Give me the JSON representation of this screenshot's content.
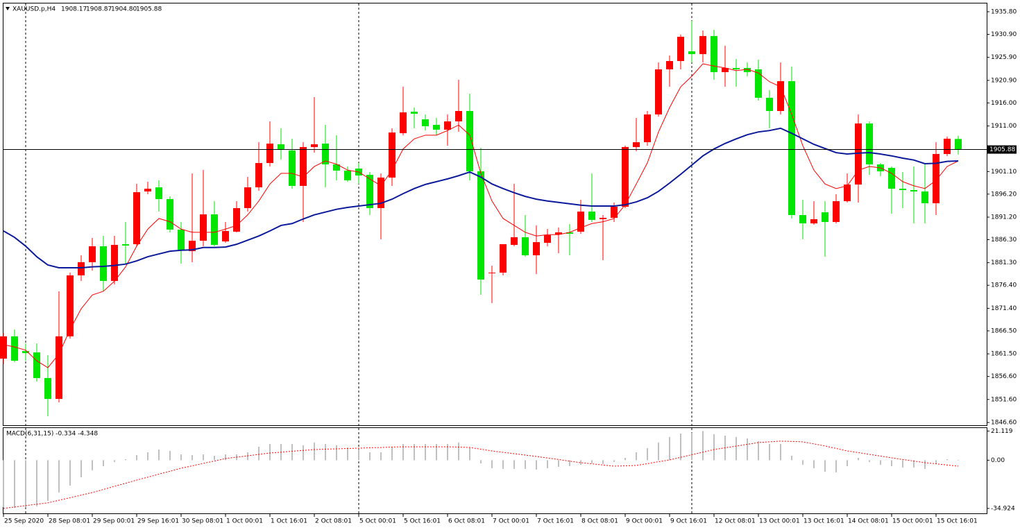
{
  "chart_data": [
    {
      "type": "candlestick",
      "symbol": "XAUUSD.p,H4",
      "last_bar_labels": [
        "1908.17",
        "1908.87",
        "1904.80",
        "1905.88"
      ],
      "categories": [
        "25 Sep 2020",
        null,
        null,
        null,
        "28 Sep 08:01",
        null,
        null,
        null,
        "29 Sep 00:01",
        null,
        null,
        null,
        "29 Sep 16:01",
        null,
        null,
        null,
        "30 Sep 08:01",
        null,
        null,
        null,
        "1 Oct 00:01",
        null,
        null,
        null,
        "1 Oct 16:01",
        null,
        null,
        null,
        "2 Oct 08:01",
        null,
        null,
        null,
        "5 Oct 00:01",
        null,
        null,
        null,
        "5 Oct 16:01",
        null,
        null,
        null,
        "6 Oct 08:01",
        null,
        null,
        null,
        "7 Oct 00:01",
        null,
        null,
        null,
        "7 Oct 16:01",
        null,
        null,
        null,
        "8 Oct 08:01",
        null,
        null,
        null,
        "9 Oct 00:01",
        null,
        null,
        null,
        "9 Oct 16:01",
        null,
        null,
        null,
        "12 Oct 08:01",
        null,
        null,
        null,
        "13 Oct 00:01",
        null,
        null,
        null,
        "13 Oct 16:01",
        null,
        null,
        null,
        "14 Oct 08:01",
        null,
        null,
        null,
        "15 Oct 00:01",
        null,
        null,
        null,
        "15 Oct 16:01",
        null,
        null
      ],
      "open": [
        1860.47,
        1865.31,
        1862.12,
        1861.82,
        1856.25,
        1851.72,
        1865.31,
        1878.55,
        1881.41,
        1884.87,
        1877.34,
        1885.32,
        1885.32,
        1896.77,
        1897.67,
        1895.12,
        1888.49,
        1883.82,
        1886.07,
        1891.8,
        1885.92,
        1888.04,
        1893.16,
        1897.67,
        1902.95,
        1907.02,
        1905.67,
        1897.98,
        1906.42,
        1907.17,
        1902.65,
        1901.3,
        1901.75,
        1900.39,
        1893.16,
        1899.79,
        1909.43,
        1914.1,
        1912.44,
        1911.24,
        1910.19,
        1911.99,
        1914.25,
        1901.15,
        1879.0,
        1879.15,
        1885.17,
        1886.83,
        1882.91,
        1885.62,
        1887.43,
        1887.89,
        1888.04,
        1892.41,
        1890.75,
        1891.05,
        1893.46,
        1906.42,
        1907.47,
        1913.5,
        1923.29,
        1925.1,
        1927.21,
        1926.61,
        1930.53,
        1922.69,
        1923.59,
        1923.59,
        1923.29,
        1917.12,
        1914.25,
        1920.73,
        1891.65,
        1889.84,
        1892.25,
        1890.15,
        1894.66,
        1898.28,
        1911.54,
        1902.65,
        1901.9,
        1897.37,
        1897.07,
        1896.77,
        1894.21,
        1904.91,
        1908.17
      ],
      "high": [
        1866.04,
        1866.79,
        1863.78,
        1863.78,
        1861.22,
        1875.09,
        1879.15,
        1882.91,
        1886.68,
        1887.13,
        1887.13,
        1890.15,
        1898.43,
        1898.89,
        1899.19,
        1895.72,
        1890.15,
        1900.69,
        1901.45,
        1894.66,
        1890.15,
        1894.66,
        1899.94,
        1907.47,
        1911.99,
        1910.49,
        1908.23,
        1907.47,
        1917.27,
        1911.24,
        1908.98,
        1902.2,
        1902.95,
        1901.0,
        1900.69,
        1910.49,
        1919.53,
        1915.0,
        1913.5,
        1912.75,
        1913.5,
        1921.03,
        1918.02,
        1906.27,
        1880.65,
        1885.17,
        1898.43,
        1891.65,
        1889.39,
        1888.64,
        1888.94,
        1889.69,
        1894.97,
        1900.69,
        1891.65,
        1894.36,
        1906.72,
        1912.75,
        1914.25,
        1924.8,
        1926.31,
        1930.83,
        1933.84,
        1931.73,
        1931.88,
        1928.42,
        1925.55,
        1924.8,
        1925.4,
        1918.77,
        1924.8,
        1923.89,
        1894.97,
        1894.66,
        1894.66,
        1896.17,
        1900.69,
        1913.5,
        1911.99,
        1902.95,
        1902.2,
        1900.99,
        1902.2,
        1902.95,
        1907.47,
        1908.68,
        1908.87
      ],
      "low": [
        1859.26,
        1859.71,
        1860.01,
        1855.49,
        1847.96,
        1850.97,
        1864.83,
        1877.34,
        1879.6,
        1875.09,
        1876.59,
        1881.11,
        1884.87,
        1896.17,
        1892.41,
        1887.89,
        1881.11,
        1881.41,
        1884.87,
        1884.87,
        1885.62,
        1887.89,
        1892.41,
        1896.92,
        1902.2,
        1903.71,
        1897.37,
        1890.15,
        1905.21,
        1897.67,
        1899.19,
        1898.89,
        1898.43,
        1891.65,
        1886.37,
        1897.98,
        1908.98,
        1910.49,
        1910.03,
        1908.98,
        1906.72,
        1909.73,
        1899.19,
        1874.33,
        1872.53,
        1878.55,
        1884.87,
        1882.61,
        1878.85,
        1884.87,
        1883.36,
        1882.91,
        1887.59,
        1890.15,
        1881.86,
        1890.15,
        1893.16,
        1905.52,
        1906.72,
        1913.05,
        1919.53,
        1923.29,
        1924.8,
        1924.8,
        1921.03,
        1919.53,
        1919.53,
        1921.79,
        1916.51,
        1910.49,
        1913.5,
        1890.9,
        1886.37,
        1889.54,
        1882.61,
        1889.84,
        1894.36,
        1894.36,
        1900.39,
        1900.09,
        1891.95,
        1893.16,
        1889.84,
        1889.84,
        1891.65,
        1904.46,
        1904.8
      ],
      "close": [
        1865.31,
        1860.01,
        1861.67,
        1856.25,
        1851.72,
        1865.31,
        1878.55,
        1881.41,
        1884.87,
        1877.34,
        1885.17,
        1885.02,
        1896.62,
        1897.37,
        1895.12,
        1888.49,
        1884.12,
        1886.07,
        1891.8,
        1885.17,
        1888.19,
        1893.16,
        1897.67,
        1902.95,
        1907.17,
        1905.97,
        1897.98,
        1906.42,
        1907.02,
        1902.65,
        1901.3,
        1899.19,
        1900.24,
        1893.16,
        1899.79,
        1909.58,
        1913.95,
        1913.65,
        1910.94,
        1910.19,
        1911.99,
        1914.25,
        1901.15,
        1877.64,
        1879.15,
        1885.32,
        1886.83,
        1882.91,
        1885.77,
        1887.28,
        1887.89,
        1887.59,
        1892.41,
        1890.6,
        1891.05,
        1893.46,
        1906.42,
        1907.47,
        1913.5,
        1923.29,
        1925.1,
        1930.37,
        1926.61,
        1930.53,
        1922.69,
        1923.59,
        1923.29,
        1922.69,
        1917.12,
        1914.25,
        1920.73,
        1891.65,
        1889.84,
        1890.75,
        1890.15,
        1894.66,
        1898.28,
        1911.54,
        1902.65,
        1901.15,
        1897.37,
        1897.07,
        1896.77,
        1894.21,
        1904.91,
        1908.23,
        1905.88
      ],
      "up_color": "#ff0000",
      "down_color": "#00e600",
      "overlays": [
        {
          "color": "#ff0000",
          "values": [
            1863.5,
            1863.0,
            1862.3,
            1860.0,
            1858.5,
            1861.5,
            1866.8,
            1871.3,
            1874.3,
            1875.1,
            1877.3,
            1880.4,
            1884.9,
            1888.6,
            1890.9,
            1890.2,
            1888.6,
            1887.9,
            1887.9,
            1887.9,
            1888.6,
            1889.4,
            1891.7,
            1894.7,
            1898.4,
            1900.7,
            1900.7,
            1899.9,
            1902.2,
            1903.4,
            1902.7,
            1901.4,
            1901.0,
            1899.5,
            1898.0,
            1901.4,
            1906.0,
            1908.2,
            1909.0,
            1909.0,
            1910.0,
            1911.2,
            1909.0,
            1900.7,
            1894.7,
            1890.9,
            1889.4,
            1887.9,
            1887.1,
            1887.4,
            1887.4,
            1887.9,
            1888.9,
            1889.8,
            1890.2,
            1890.9,
            1893.9,
            1898.4,
            1903.0,
            1909.7,
            1915.0,
            1919.5,
            1921.8,
            1924.5,
            1924.0,
            1923.6,
            1923.0,
            1923.3,
            1922.5,
            1920.6,
            1919.5,
            1913.5,
            1906.7,
            1901.4,
            1898.4,
            1897.4,
            1898.0,
            1901.4,
            1902.2,
            1901.9,
            1900.7,
            1898.9,
            1898.0,
            1897.4,
            1899.2,
            1902.2,
            1903.4
          ]
        },
        {
          "color": "#0a1a9a",
          "values": [
            1888.2,
            1886.8,
            1884.9,
            1882.6,
            1880.8,
            1880.2,
            1880.2,
            1880.2,
            1880.4,
            1880.5,
            1880.7,
            1881.0,
            1881.7,
            1882.6,
            1883.2,
            1883.8,
            1884.0,
            1884.1,
            1884.6,
            1884.6,
            1884.7,
            1885.3,
            1886.2,
            1887.1,
            1888.2,
            1889.4,
            1889.8,
            1890.8,
            1891.7,
            1892.3,
            1892.9,
            1893.3,
            1893.6,
            1893.9,
            1894.2,
            1895.1,
            1896.3,
            1897.4,
            1898.3,
            1898.9,
            1899.5,
            1900.2,
            1901.0,
            1899.9,
            1898.4,
            1897.4,
            1896.5,
            1895.7,
            1895.1,
            1894.7,
            1894.4,
            1894.1,
            1893.8,
            1893.6,
            1893.6,
            1893.6,
            1893.9,
            1894.5,
            1895.4,
            1896.8,
            1898.6,
            1900.5,
            1902.5,
            1904.5,
            1906.0,
            1907.2,
            1908.2,
            1909.1,
            1909.7,
            1910.0,
            1910.5,
            1909.4,
            1908.2,
            1907.0,
            1906.1,
            1905.2,
            1904.9,
            1905.1,
            1905.2,
            1904.9,
            1904.5,
            1904.0,
            1903.6,
            1902.8,
            1902.9,
            1903.3,
            1903.4
          ]
        }
      ],
      "ylim": [
        1846.0,
        1937.6
      ],
      "yticks": [
        {
          "value": 1935.8,
          "label": "1935.80"
        },
        {
          "value": 1930.9,
          "label": "1930.90"
        },
        {
          "value": 1925.9,
          "label": "1925.90"
        },
        {
          "value": 1920.9,
          "label": "1920.90"
        },
        {
          "value": 1916.0,
          "label": "1916.00"
        },
        {
          "value": 1911.0,
          "label": "1911.00"
        },
        {
          "value": 1901.1,
          "label": "1901.10"
        },
        {
          "value": 1896.2,
          "label": "1896.20"
        },
        {
          "value": 1891.2,
          "label": "1891.20"
        },
        {
          "value": 1886.3,
          "label": "1886.30"
        },
        {
          "value": 1881.3,
          "label": "1881.30"
        },
        {
          "value": 1876.4,
          "label": "1876.40"
        },
        {
          "value": 1871.4,
          "label": "1871.40"
        },
        {
          "value": 1866.5,
          "label": "1866.50"
        },
        {
          "value": 1861.5,
          "label": "1861.50"
        },
        {
          "value": 1856.6,
          "label": "1856.60"
        },
        {
          "value": 1851.6,
          "label": "1851.60"
        },
        {
          "value": 1846.6,
          "label": "1846.60"
        }
      ],
      "current_price": {
        "value": 1905.88,
        "label": "1905.88"
      }
    },
    {
      "type": "macd",
      "title": "MACD(6,31,15) -0.334 -4.348",
      "histogram": [
        -34.0,
        -34.5,
        -34.2,
        -33.4,
        -29.4,
        -23.4,
        -18.4,
        -12.4,
        -7.3,
        -4.3,
        -1.3,
        0.7,
        3.7,
        5.7,
        7.7,
        6.7,
        4.2,
        3.7,
        4.2,
        3.2,
        4.2,
        4.2,
        5.7,
        9.7,
        11.8,
        11.8,
        11.8,
        10.8,
        12.8,
        11.8,
        10.8,
        9.2,
        7.7,
        5.7,
        5.7,
        9.2,
        11.8,
        11.8,
        11.8,
        11.8,
        11.8,
        12.8,
        9.2,
        -2.3,
        -5.8,
        -6.3,
        -6.3,
        -6.3,
        -6.8,
        -5.8,
        -4.8,
        -4.3,
        -3.3,
        -2.3,
        -2.8,
        -1.3,
        1.7,
        5.7,
        8.7,
        12.8,
        16.8,
        19.3,
        19.8,
        21.119,
        18.8,
        17.8,
        16.8,
        15.8,
        13.8,
        11.8,
        11.8,
        3.2,
        -3.3,
        -5.8,
        -8.3,
        -8.8,
        -4.3,
        1.7,
        -1.3,
        -3.3,
        -4.3,
        -5.3,
        -5.3,
        -6.3,
        -2.3,
        0.7,
        -0.334
      ],
      "signal": [
        -34.924,
        -33.9,
        -32.9,
        -31.9,
        -30.9,
        -29.0,
        -27.2,
        -25.3,
        -23.4,
        -21.2,
        -18.9,
        -16.7,
        -14.4,
        -12.3,
        -10.1,
        -8.0,
        -5.8,
        -4.1,
        -2.3,
        -0.6,
        1.2,
        2.2,
        3.2,
        4.2,
        5.2,
        5.8,
        6.5,
        7.1,
        7.7,
        8.0,
        8.2,
        8.5,
        8.7,
        9.0,
        9.2,
        9.5,
        9.7,
        9.7,
        9.7,
        9.7,
        9.7,
        9.5,
        9.2,
        8.0,
        6.7,
        5.7,
        4.7,
        3.7,
        2.7,
        1.6,
        0.5,
        -0.7,
        -1.8,
        -2.6,
        -3.5,
        -4.3,
        -4.1,
        -3.8,
        -2.5,
        -1.1,
        0.2,
        2.1,
        4.0,
        5.8,
        7.7,
        9.0,
        10.2,
        11.5,
        12.8,
        13.3,
        13.8,
        13.6,
        13.3,
        11.8,
        10.3,
        8.5,
        6.7,
        5.5,
        4.2,
        3.0,
        1.7,
        0.5,
        -0.6,
        -1.8,
        -2.6,
        -3.5,
        -4.348
      ],
      "hist_color": "#c0c0c0",
      "signal_color": "#ff0000",
      "ylim": [
        -38.5,
        23.3
      ],
      "yticks": [
        21.119,
        {
          "value": 0,
          "label": "0.00"
        },
        -34.924
      ]
    }
  ]
}
